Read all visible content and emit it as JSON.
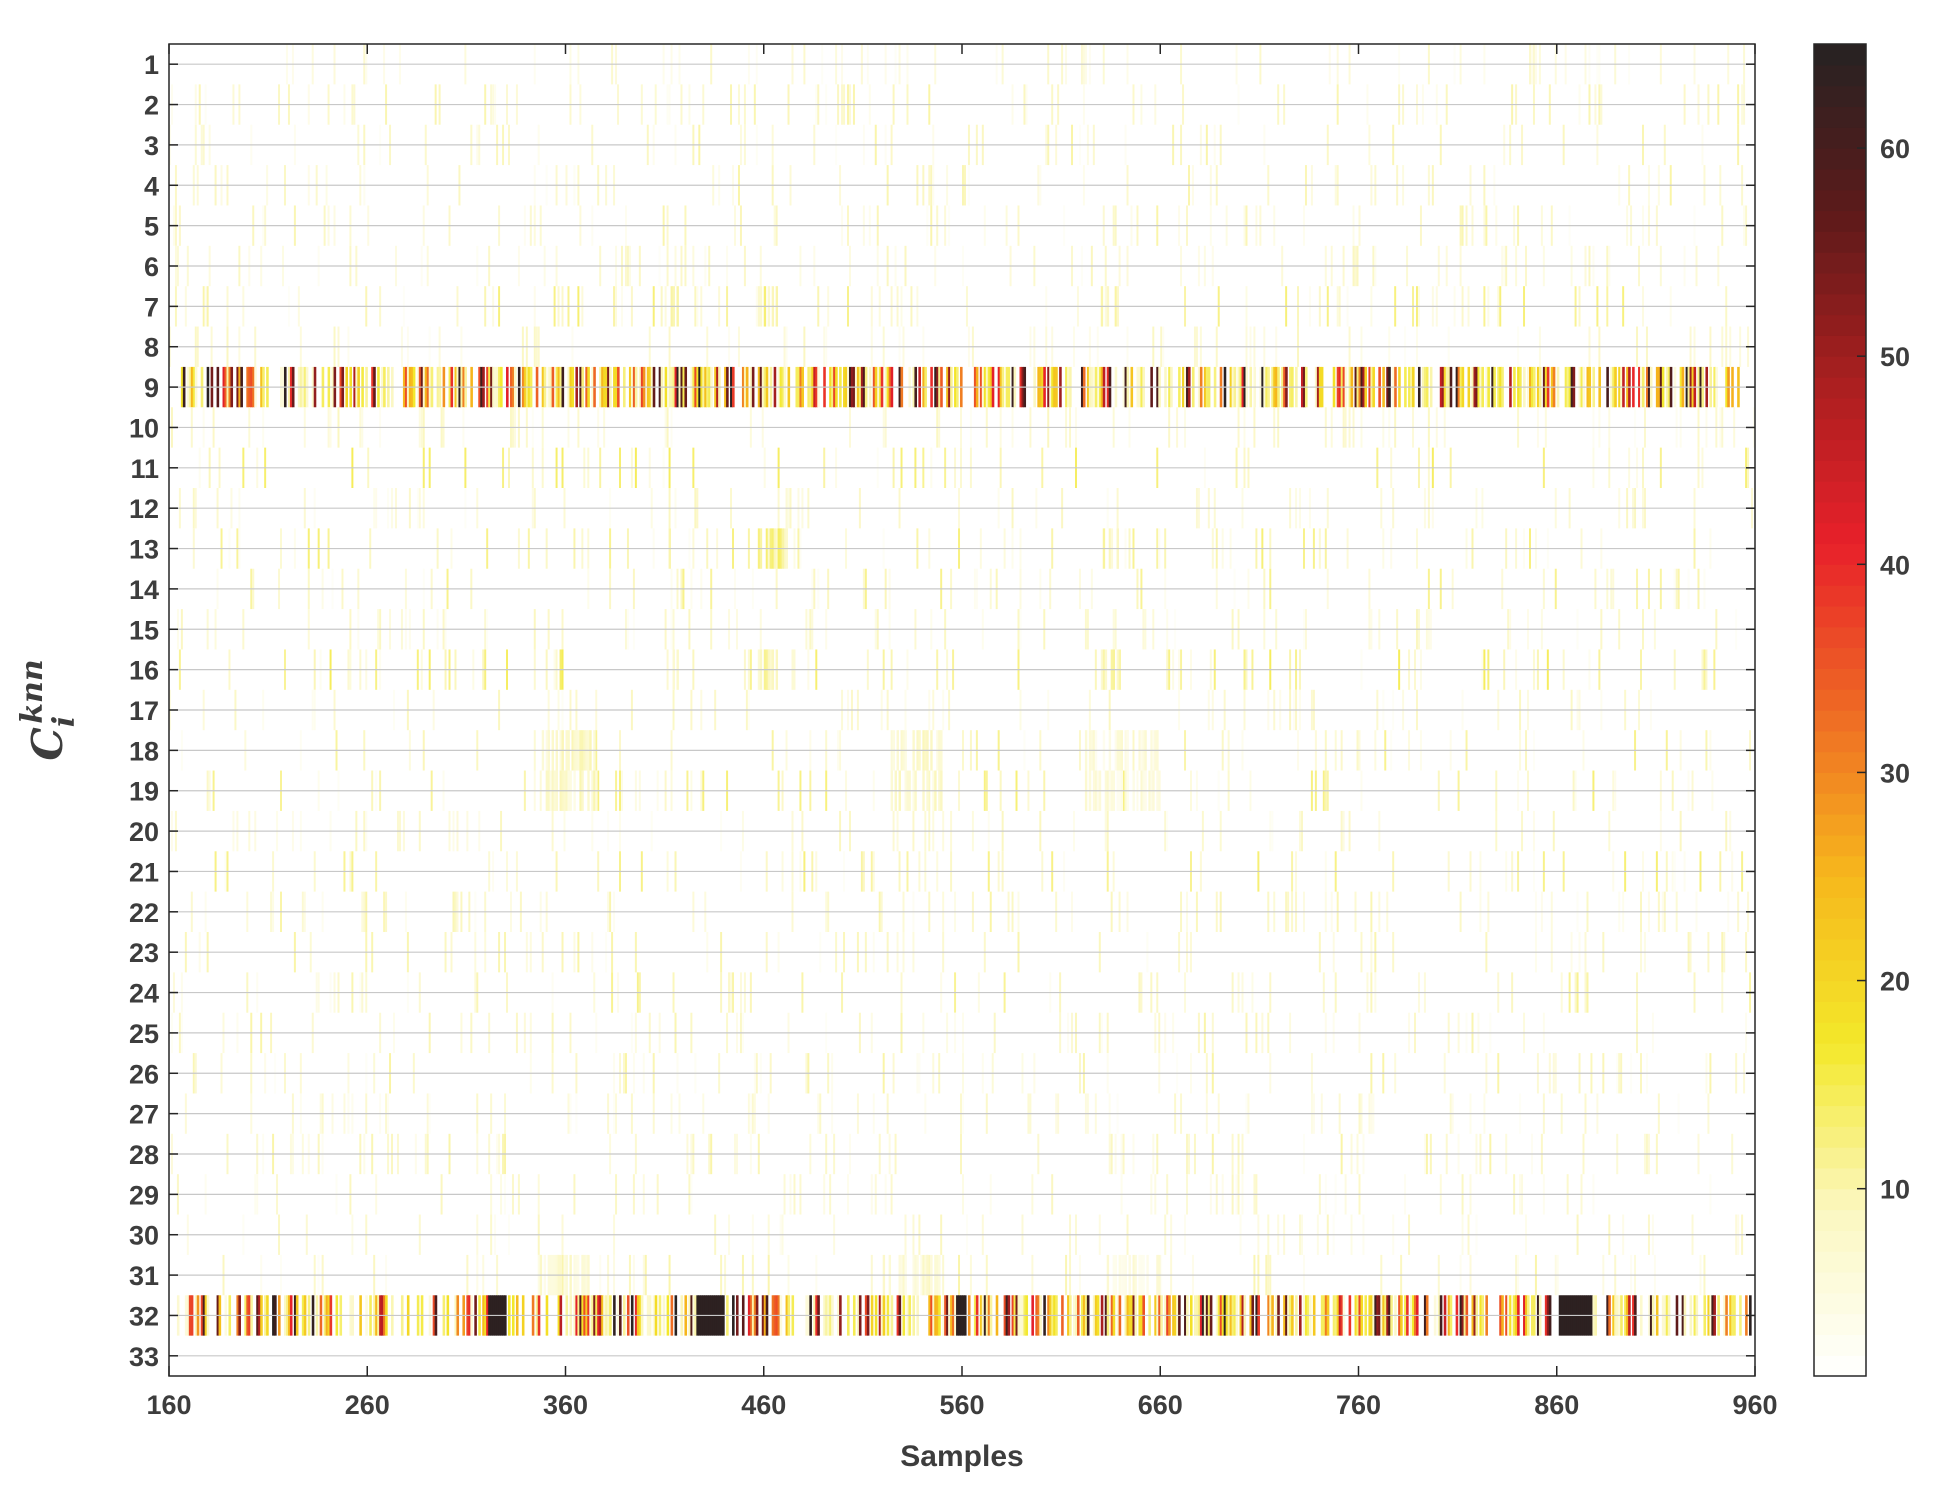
{
  "chart_data": {
    "type": "heatmap",
    "xlabel": "Samples",
    "ylabel_base": "C",
    "ylabel_sup": "knn",
    "ylabel_sub": "i",
    "xlim": [
      160,
      960
    ],
    "x_ticks": [
      160,
      260,
      360,
      460,
      560,
      660,
      760,
      860,
      960
    ],
    "y_rows": [
      1,
      2,
      3,
      4,
      5,
      6,
      7,
      8,
      9,
      10,
      11,
      12,
      13,
      14,
      15,
      16,
      17,
      18,
      19,
      20,
      21,
      22,
      23,
      24,
      25,
      26,
      27,
      28,
      29,
      30,
      31,
      32,
      33
    ],
    "colorbar": {
      "range": [
        1,
        65
      ],
      "ticks": [
        10,
        20,
        30,
        40,
        50,
        60
      ],
      "colormap": "hot-reversed",
      "stops": [
        "#ffffff",
        "#fbf7c0",
        "#f3e82a",
        "#f6b81c",
        "#ee6a24",
        "#e8202a",
        "#a81f1f",
        "#5c1a1a",
        "#262222"
      ]
    },
    "grid": true,
    "row_activity": [
      {
        "row": 1,
        "level": "sparse",
        "typical_value": 4
      },
      {
        "row": 2,
        "level": "sparse",
        "typical_value": 6
      },
      {
        "row": 3,
        "level": "sparse",
        "typical_value": 6
      },
      {
        "row": 4,
        "level": "sparse",
        "typical_value": 6
      },
      {
        "row": 5,
        "level": "sparse",
        "typical_value": 6
      },
      {
        "row": 6,
        "level": "sparse",
        "typical_value": 5
      },
      {
        "row": 7,
        "level": "sparse",
        "typical_value": 8
      },
      {
        "row": 8,
        "level": "sparse",
        "typical_value": 5
      },
      {
        "row": 9,
        "level": "dense",
        "typical_value": 40
      },
      {
        "row": 10,
        "level": "sparse",
        "typical_value": 5
      },
      {
        "row": 11,
        "level": "sparse",
        "typical_value": 9
      },
      {
        "row": 12,
        "level": "sparse",
        "typical_value": 5
      },
      {
        "row": 13,
        "level": "sparse",
        "typical_value": 8
      },
      {
        "row": 14,
        "level": "sparse",
        "typical_value": 7
      },
      {
        "row": 15,
        "level": "sparse",
        "typical_value": 5
      },
      {
        "row": 16,
        "level": "sparse",
        "typical_value": 9
      },
      {
        "row": 17,
        "level": "sparse",
        "typical_value": 5
      },
      {
        "row": 18,
        "level": "sparse",
        "typical_value": 7
      },
      {
        "row": 19,
        "level": "sparse",
        "typical_value": 8
      },
      {
        "row": 20,
        "level": "sparse",
        "typical_value": 5
      },
      {
        "row": 21,
        "level": "sparse",
        "typical_value": 8
      },
      {
        "row": 22,
        "level": "sparse",
        "typical_value": 6
      },
      {
        "row": 23,
        "level": "sparse",
        "typical_value": 6
      },
      {
        "row": 24,
        "level": "sparse",
        "typical_value": 7
      },
      {
        "row": 25,
        "level": "sparse",
        "typical_value": 6
      },
      {
        "row": 26,
        "level": "sparse",
        "typical_value": 6
      },
      {
        "row": 27,
        "level": "sparse",
        "typical_value": 4
      },
      {
        "row": 28,
        "level": "sparse",
        "typical_value": 6
      },
      {
        "row": 29,
        "level": "sparse",
        "typical_value": 5
      },
      {
        "row": 30,
        "level": "sparse",
        "typical_value": 5
      },
      {
        "row": 31,
        "level": "sparse",
        "typical_value": 6
      },
      {
        "row": 32,
        "level": "dense",
        "typical_value": 45
      },
      {
        "row": 33,
        "level": "none",
        "typical_value": 0
      }
    ],
    "hotspots": [
      {
        "rows": [
          7,
          13,
          16
        ],
        "x_range": [
          412,
          417
        ],
        "value": 10
      },
      {
        "rows": [
          7,
          13,
          16
        ],
        "x_range": [
          457,
          472
        ],
        "value": 10
      },
      {
        "rows": [
          7,
          13,
          16
        ],
        "x_range": [
          630,
          640
        ],
        "value": 8
      },
      {
        "rows": [
          18,
          19
        ],
        "x_range": [
          348,
          376
        ],
        "value": 7
      },
      {
        "rows": [
          18,
          19
        ],
        "x_range": [
          524,
          550
        ],
        "value": 7
      },
      {
        "rows": [
          18,
          19
        ],
        "x_range": [
          622,
          660
        ],
        "value": 5
      },
      {
        "rows": [
          31
        ],
        "x_range": [
          346,
          372
        ],
        "value": 6
      },
      {
        "rows": [
          31
        ],
        "x_range": [
          520,
          550
        ],
        "value": 6
      },
      {
        "rows": [
          31
        ],
        "x_range": [
          632,
          660
        ],
        "value": 5
      }
    ]
  }
}
